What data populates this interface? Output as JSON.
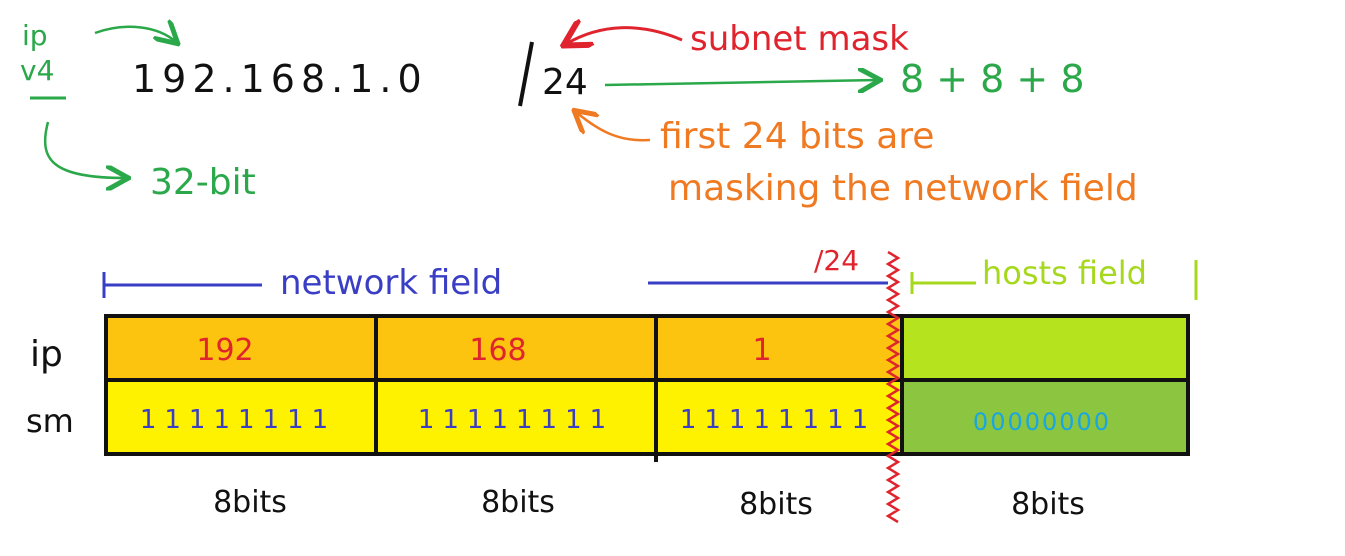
{
  "header": {
    "ip_label": "ip",
    "v4_label": "v4",
    "address": "192.168.1.0",
    "slash": "/",
    "prefix": "24",
    "bits32": "32-bit",
    "subnet_mask_label": "subnet mask",
    "sum": "8 + 8 + 8",
    "note_line1": "first 24 bits are",
    "note_line2": "masking the network field"
  },
  "fields": {
    "network_label": "network field",
    "hosts_label": "hosts field",
    "boundary_label": "/24"
  },
  "table": {
    "row_labels": [
      "ip",
      "sm"
    ],
    "ip_values": [
      "192",
      "168",
      "1",
      ""
    ],
    "mask_values": [
      "11111111",
      "11111111",
      "11111111",
      "00000000"
    ],
    "bit_labels": [
      "8bits",
      "8bits",
      "8bits",
      "8bits"
    ]
  },
  "colors": {
    "ip_row": "#fcc30f",
    "mask_row": "#fff200",
    "host_ip": "#b5e41f",
    "host_mask": "#8cc53f",
    "red": "#e0242e",
    "green": "#2aa84a",
    "orange": "#f07a22",
    "blue": "#3a3ec4"
  }
}
